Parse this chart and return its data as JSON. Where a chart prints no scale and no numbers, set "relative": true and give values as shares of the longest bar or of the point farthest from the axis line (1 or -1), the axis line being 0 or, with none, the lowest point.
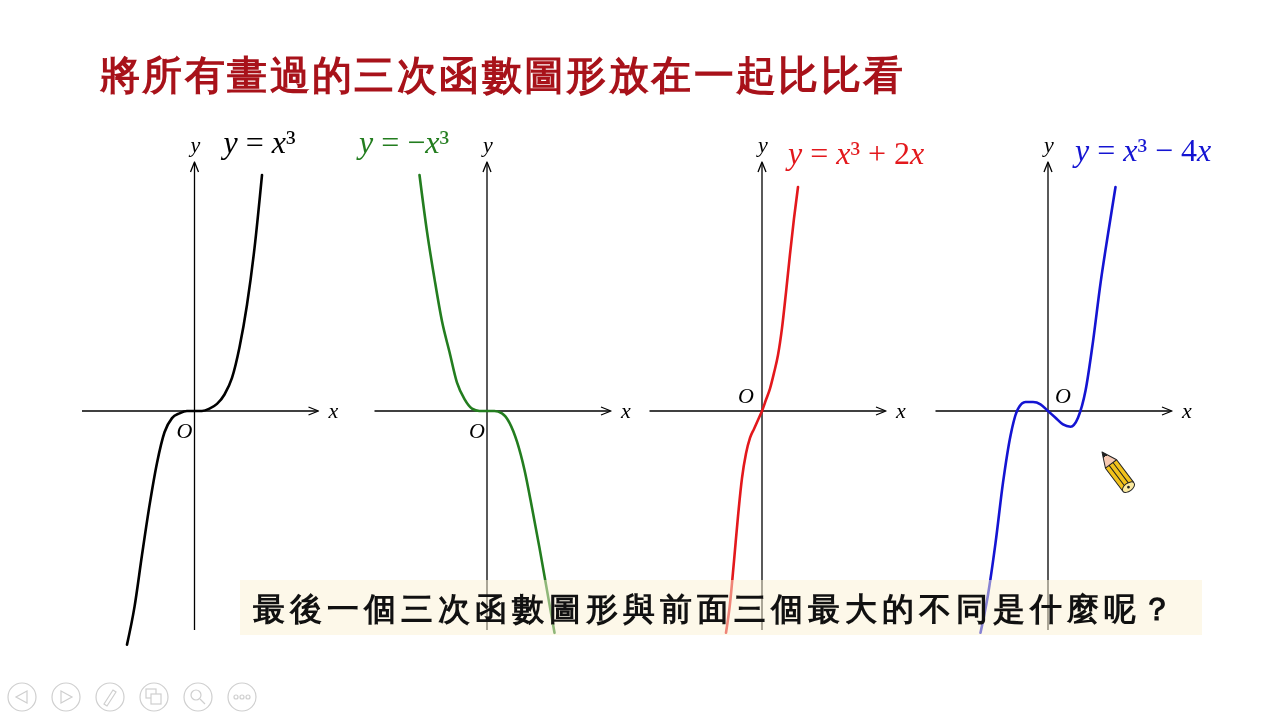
{
  "chart_data": [
    {
      "type": "line",
      "title": "將所有畫過的三次函數圖形放在一起比比看",
      "xlabel": "x",
      "ylabel": "y",
      "relative": true,
      "categories": [
        null,
        null,
        null,
        null,
        null,
        null,
        null,
        null,
        null,
        null,
        null,
        null,
        null,
        null,
        null,
        null,
        null,
        null,
        null
      ],
      "series": [
        {
          "name": "y = x³",
          "color": "#000000",
          "values": [
            -0.99,
            -0.83,
            -0.61,
            -0.4,
            -0.22,
            -0.09,
            -0.03,
            -0.01,
            0,
            0,
            0,
            0.01,
            0.03,
            0.07,
            0.14,
            0.27,
            0.45,
            0.69,
            1
          ]
        }
      ],
      "annotations": [
        "O"
      ]
    },
    {
      "type": "line",
      "xlabel": "x",
      "ylabel": "y",
      "relative": true,
      "categories": [
        null,
        null,
        null,
        null,
        null,
        null,
        null,
        null,
        null,
        null,
        null,
        null,
        null,
        null,
        null,
        null,
        null,
        null,
        null
      ],
      "series": [
        {
          "name": "y = −x³",
          "color": "#237d1f",
          "values": [
            1,
            0.76,
            0.56,
            0.38,
            0.25,
            0.12,
            0.05,
            0.01,
            0,
            0,
            0,
            -0.01,
            -0.05,
            -0.13,
            -0.25,
            -0.41,
            -0.58,
            -0.76,
            -0.94
          ]
        }
      ],
      "annotations": [
        "O"
      ]
    },
    {
      "type": "line",
      "xlabel": "x",
      "ylabel": "y",
      "relative": true,
      "categories": [
        null,
        null,
        null,
        null,
        null,
        null,
        null,
        null,
        null,
        null,
        null,
        null,
        null,
        null,
        null,
        null,
        null,
        null,
        null
      ],
      "series": [
        {
          "name": "y = x³ + 2x",
          "color": "#e3181c",
          "values": [
            -0.99,
            -0.86,
            -0.67,
            -0.47,
            -0.3,
            -0.19,
            -0.12,
            -0.08,
            -0.04,
            0,
            0.05,
            0.1,
            0.17,
            0.25,
            0.37,
            0.53,
            0.7,
            0.86,
            1
          ]
        }
      ],
      "annotations": [
        "O"
      ]
    },
    {
      "type": "line",
      "xlabel": "x",
      "ylabel": "y",
      "relative": true,
      "categories": [
        null,
        null,
        null,
        null,
        null,
        null,
        null,
        null,
        null,
        null,
        null,
        null,
        null,
        null,
        null,
        null,
        null,
        null,
        null
      ],
      "series": [
        {
          "name": "y = x³ − 4x",
          "color": "#1414d2",
          "values": [
            -0.99,
            -0.82,
            -0.59,
            -0.32,
            -0.11,
            0.01,
            0.04,
            0.04,
            0.03,
            0,
            -0.03,
            -0.06,
            -0.07,
            -0.03,
            0.09,
            0.31,
            0.57,
            0.79,
            1
          ]
        }
      ],
      "annotations": [
        "O"
      ]
    },
    {
      "type": "other",
      "annotations": [
        "最後一個三次函數圖形與前面三個最大的不同是什麼呢？"
      ]
    }
  ]
}
